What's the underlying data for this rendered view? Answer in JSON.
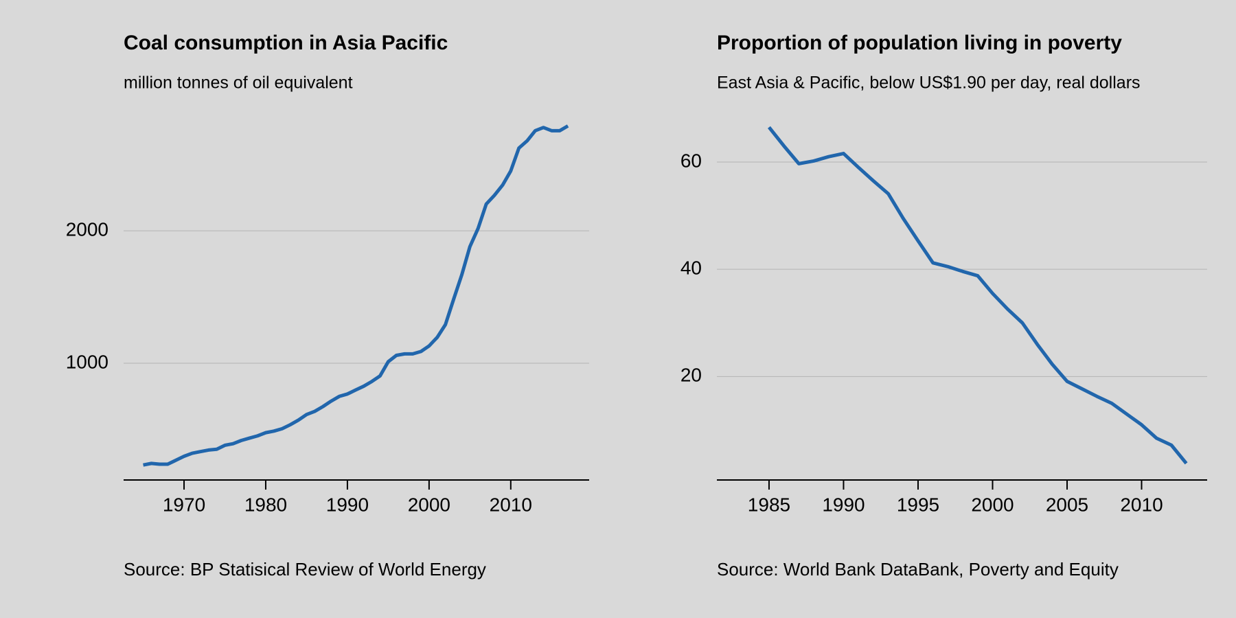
{
  "chart_data": [
    {
      "type": "line",
      "title": "Coal consumption in Asia Pacific",
      "subtitle": "million tonnes of oil equivalent",
      "source": "Source: BP Statisical Review of World Energy",
      "color": "#2166ac",
      "grid": true,
      "x": [
        1965,
        1966,
        1967,
        1968,
        1969,
        1970,
        1971,
        1972,
        1973,
        1974,
        1975,
        1976,
        1977,
        1978,
        1979,
        1980,
        1981,
        1982,
        1983,
        1984,
        1985,
        1986,
        1987,
        1988,
        1989,
        1990,
        1991,
        1992,
        1993,
        1994,
        1995,
        1996,
        1997,
        1998,
        1999,
        2000,
        2001,
        2002,
        2003,
        2004,
        2005,
        2006,
        2007,
        2008,
        2009,
        2010,
        2011,
        2012,
        2013,
        2014,
        2015,
        2016,
        2017
      ],
      "values": [
        232,
        244,
        238,
        238,
        268,
        298,
        321,
        333,
        345,
        351,
        381,
        393,
        417,
        435,
        452,
        476,
        488,
        506,
        536,
        571,
        613,
        637,
        673,
        714,
        750,
        768,
        798,
        827,
        863,
        905,
        1012,
        1060,
        1071,
        1071,
        1089,
        1131,
        1196,
        1292,
        1482,
        1667,
        1881,
        2018,
        2202,
        2268,
        2345,
        2452,
        2625,
        2679,
        2756,
        2780,
        2756,
        2756,
        2792
      ],
      "xlim": [
        1962.6,
        2019.6
      ],
      "xticks": [
        1970,
        1980,
        1990,
        2000,
        2010
      ],
      "ylim": [
        119,
        2851
      ],
      "yticks": [
        1000,
        2000
      ]
    },
    {
      "type": "line",
      "title": "Proportion of population living in poverty",
      "subtitle": "East Asia & Pacific, below US$1.90 per day, real dollars",
      "source": "Source: World Bank DataBank, Poverty and Equity",
      "color": "#2166ac",
      "grid": true,
      "x": [
        1985,
        1986,
        1987,
        1988,
        1989,
        1990,
        1991,
        1992,
        1993,
        1994,
        1995,
        1996,
        1997,
        1998,
        1999,
        2000,
        2001,
        2002,
        2003,
        2004,
        2005,
        2006,
        2007,
        2008,
        2009,
        2010,
        2011,
        2012,
        2013
      ],
      "values": [
        66.5,
        63,
        59.7,
        60.2,
        61,
        61.6,
        59,
        56.5,
        54.1,
        49.5,
        45.3,
        41.2,
        40.5,
        39.6,
        38.8,
        35.5,
        32.6,
        30,
        26,
        22.3,
        19.1,
        17.7,
        16.3,
        15,
        13,
        11,
        8.5,
        7.2,
        3.8
      ],
      "xlim": [
        1981.5,
        2014.4
      ],
      "xticks": [
        1985,
        1990,
        1995,
        2000,
        2005,
        2010
      ],
      "ylim": [
        0.7,
        68.2
      ],
      "yticks": [
        20,
        40,
        60
      ]
    }
  ]
}
